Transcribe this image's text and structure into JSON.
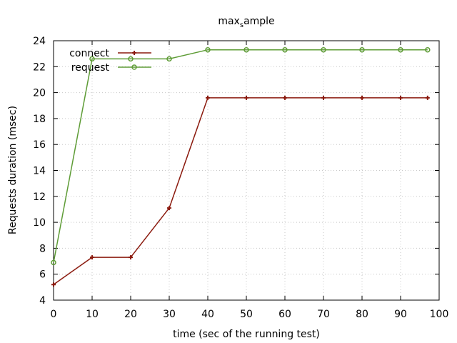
{
  "chart_data": {
    "type": "line",
    "title": "max",
    "title_sub": "s",
    "title_rest": "ample",
    "xlabel": "time (sec of the running test)",
    "ylabel": "Requests duration (msec)",
    "xlim": [
      0,
      100
    ],
    "ylim": [
      4,
      24
    ],
    "x_ticks": [
      "0",
      "10",
      "20",
      "30",
      "40",
      "50",
      "60",
      "70",
      "80",
      "90",
      "100"
    ],
    "y_ticks": [
      "4",
      "6",
      "8",
      "10",
      "12",
      "14",
      "16",
      "18",
      "20",
      "22",
      "24"
    ],
    "grid": true,
    "legend_position": "top-left",
    "series": [
      {
        "name": "connect",
        "color": "#8b1a0e",
        "marker": "plus",
        "x": [
          0,
          10,
          20,
          30,
          40,
          50,
          60,
          70,
          80,
          90,
          97
        ],
        "y": [
          5.2,
          7.3,
          7.3,
          11.1,
          19.6,
          19.6,
          19.6,
          19.6,
          19.6,
          19.6,
          19.6
        ]
      },
      {
        "name": "request",
        "color": "#5e9c36",
        "marker": "circle",
        "x": [
          0,
          10,
          20,
          30,
          40,
          50,
          60,
          70,
          80,
          90,
          97
        ],
        "y": [
          6.9,
          22.6,
          22.6,
          22.6,
          23.3,
          23.3,
          23.3,
          23.3,
          23.3,
          23.3,
          23.3
        ]
      }
    ]
  }
}
